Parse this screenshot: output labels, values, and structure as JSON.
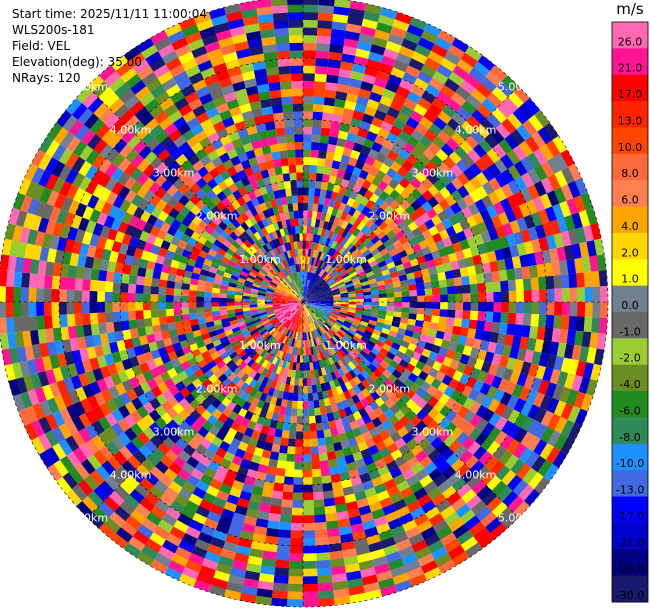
{
  "chart_data": {
    "type": "heatmap",
    "subtype": "radar-ppi",
    "info": {
      "start_time": "Start time: 2025/11/11 11:00:04",
      "instrument": "WLS200s-181",
      "field": "Field: VEL",
      "elevation": "Elevation(deg): 35.00",
      "nrays": "NRays: 120"
    },
    "n_rays": 120,
    "range_rings_km": [
      1,
      2,
      3,
      4,
      5
    ],
    "range_ring_labels": [
      "1.00km",
      "2.00km",
      "3.00km",
      "4.00km",
      "5.00km"
    ],
    "max_range_km": 5.0,
    "grid": true,
    "colorbar": {
      "title": "m/s",
      "position": "right",
      "tick_labels": [
        "26.0",
        "21.0",
        "17.0",
        "13.0",
        "10.0",
        "8.0",
        "6.0",
        "4.0",
        "2.0",
        "1.0",
        "0.0",
        "-1.0",
        "-2.0",
        "-4.0",
        "-6.0",
        "-8.0",
        "-10.0",
        "-13.0",
        "-17.0",
        "-21.0",
        "-26.0",
        "-30.0"
      ],
      "colors": [
        "#ff69b4",
        "#ff1493",
        "#ff0000",
        "#ff2400",
        "#ff4500",
        "#ff6a3d",
        "#ff7f50",
        "#ffa500",
        "#ffd700",
        "#ffff00",
        "#708090",
        "#696969",
        "#9acd32",
        "#6b8e23",
        "#228b22",
        "#2e8b57",
        "#1e90ff",
        "#4169e1",
        "#0000ff",
        "#0000cd",
        "#000080",
        "#191970"
      ]
    }
  }
}
